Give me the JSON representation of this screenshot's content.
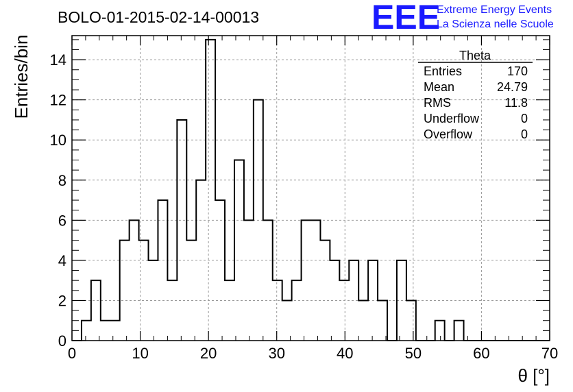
{
  "header": {
    "run_id": "BOLO-01-2015-02-14-00013",
    "logo_mark": "EEE",
    "logo_line1": "Extreme Energy Events",
    "logo_line2": "La Scienza nelle Scuole",
    "logo_color": "#1a1aff"
  },
  "stats": {
    "name": "Theta",
    "rows": [
      {
        "label": "Entries",
        "value": "170"
      },
      {
        "label": "Mean",
        "value": "24.79"
      },
      {
        "label": "RMS",
        "value": "11.8"
      },
      {
        "label": "Underflow",
        "value": "0"
      },
      {
        "label": "Overflow",
        "value": "0"
      }
    ]
  },
  "chart_data": {
    "type": "histogram",
    "title": "BOLO-01-2015-02-14-00013",
    "xlabel": "θ [°]",
    "ylabel": "Entries/bin",
    "xlim": [
      0,
      70
    ],
    "ylim": [
      0,
      15.2
    ],
    "bin_edges_start": 0,
    "bin_width": 1.4,
    "values": [
      0,
      1,
      3,
      1,
      1,
      5,
      6,
      5,
      4,
      7,
      3,
      11,
      5,
      8,
      15,
      7,
      3,
      9,
      6,
      12,
      6,
      3,
      2,
      3,
      6,
      6,
      5,
      4,
      3,
      4,
      2,
      4,
      2,
      0,
      4,
      2,
      0,
      0,
      1,
      0,
      1,
      0,
      0,
      0,
      0,
      0,
      0,
      0,
      0,
      0
    ],
    "x_ticks": [
      0,
      10,
      20,
      30,
      40,
      50,
      60,
      70
    ],
    "y_ticks": [
      0,
      2,
      4,
      6,
      8,
      10,
      12,
      14
    ],
    "grid": true,
    "line_color": "#000000"
  }
}
